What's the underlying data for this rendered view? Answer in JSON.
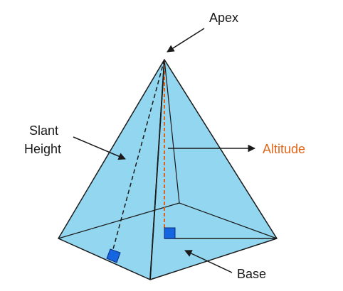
{
  "labels": {
    "apex": "Apex",
    "slant_height_line1": "Slant",
    "slant_height_line2": "Height",
    "altitude": "Altitude",
    "base": "Base"
  },
  "colors": {
    "face_fill": "#93d6f0",
    "edge": "#1a1a1a",
    "altitude_line": "#d9661f",
    "altitude_text": "#e0661a",
    "right_angle_marker": "#1565e0",
    "label_text": "#1a1a1a"
  }
}
